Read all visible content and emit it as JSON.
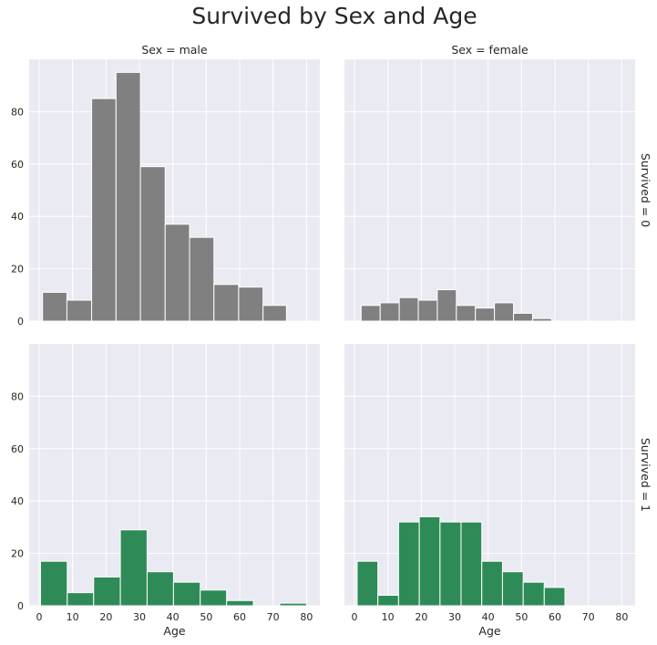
{
  "title": "Survived by Sex and Age",
  "columns": [
    "Sex = male",
    "Sex = female"
  ],
  "rows": [
    "Survived = 0",
    "Survived = 1"
  ],
  "xlabel": "Age",
  "colors": {
    "survived_0": "#808080",
    "survived_1": "#2e8b57",
    "panel_bg": "#eaeaf2",
    "grid": "#ffffff"
  },
  "chart_data": {
    "type": "bar",
    "title": "Survived by Sex and Age",
    "xlabel": "Age",
    "ylabel": "",
    "xlim": [
      -3,
      84
    ],
    "ylim": [
      0,
      100
    ],
    "xticks": [
      0,
      10,
      20,
      30,
      40,
      50,
      60,
      70,
      80
    ],
    "yticks": [
      0,
      20,
      40,
      60,
      80
    ],
    "grid": true,
    "panels": [
      {
        "column": "Sex = male",
        "row": "Survived = 0",
        "color": "#808080",
        "bin_edges": [
          1,
          8.3,
          15.7,
          23,
          30.3,
          37.7,
          45,
          52.3,
          59.7,
          67,
          74
        ],
        "values": [
          11,
          8,
          85,
          95,
          59,
          37,
          32,
          14,
          13,
          6
        ]
      },
      {
        "column": "Sex = female",
        "row": "Survived = 0",
        "color": "#808080",
        "bin_edges": [
          2,
          7.7,
          13.4,
          19.1,
          24.8,
          30.5,
          36.2,
          41.9,
          47.6,
          53.3,
          59
        ],
        "values": [
          6,
          7,
          9,
          8,
          12,
          6,
          5,
          7,
          3,
          1
        ]
      },
      {
        "column": "Sex = male",
        "row": "Survived = 1",
        "color": "#2e8b57",
        "bin_edges": [
          0.4,
          8.4,
          16.3,
          24.3,
          32.3,
          40.2,
          48.2,
          56.1,
          64.1,
          72,
          80
        ],
        "values": [
          17,
          5,
          11,
          29,
          13,
          9,
          6,
          2,
          0,
          1
        ]
      },
      {
        "column": "Sex = female",
        "row": "Survived = 1",
        "color": "#2e8b57",
        "bin_edges": [
          0.8,
          7,
          13.2,
          19.4,
          25.6,
          31.9,
          38.1,
          44.3,
          50.5,
          56.8,
          63
        ],
        "values": [
          17,
          4,
          32,
          34,
          32,
          32,
          17,
          13,
          9,
          7
        ]
      }
    ]
  }
}
